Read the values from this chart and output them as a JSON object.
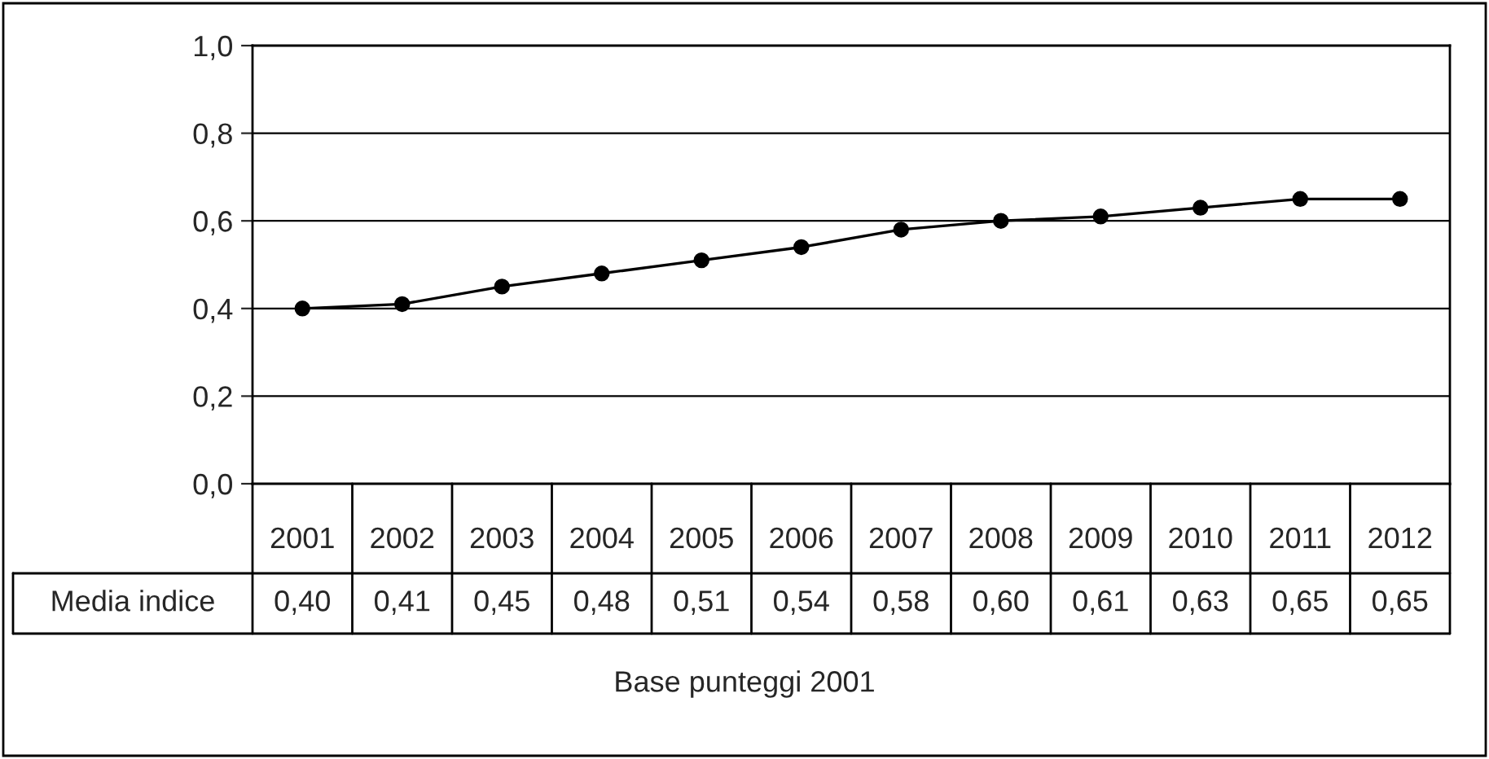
{
  "chart_data": {
    "type": "line",
    "categories": [
      "2001",
      "2002",
      "2003",
      "2004",
      "2005",
      "2006",
      "2007",
      "2008",
      "2009",
      "2010",
      "2011",
      "2012"
    ],
    "series": [
      {
        "name": "Media indice",
        "color": "#000000",
        "values": [
          0.4,
          0.41,
          0.45,
          0.48,
          0.51,
          0.54,
          0.58,
          0.6,
          0.61,
          0.63,
          0.65,
          0.65
        ],
        "value_labels": [
          "0,40",
          "0,41",
          "0,45",
          "0,48",
          "0,51",
          "0,54",
          "0,58",
          "0,60",
          "0,61",
          "0,63",
          "0,65",
          "0,65"
        ]
      }
    ],
    "ylim": [
      0,
      1
    ],
    "yticks": [
      {
        "value": 0,
        "label": "0,0"
      },
      {
        "value": 0.2,
        "label": "0,2"
      },
      {
        "value": 0.4,
        "label": "0,4"
      },
      {
        "value": 0.6,
        "label": "0,6"
      },
      {
        "value": 0.8,
        "label": "0,8"
      },
      {
        "value": 1,
        "label": "1,0"
      }
    ],
    "grid": "y",
    "marker": "circle",
    "line_style": "solid",
    "xlabel": "Base punteggi 2001"
  }
}
